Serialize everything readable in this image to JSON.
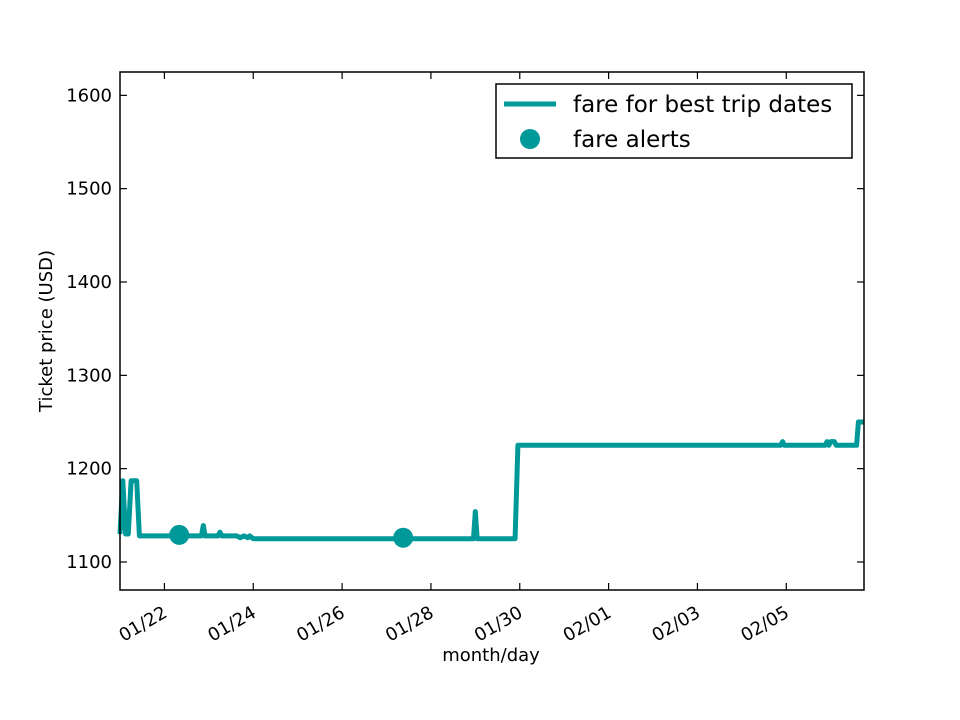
{
  "chart_data": {
    "type": "line",
    "xlabel": "month/day",
    "ylabel": "Ticket price (USD)",
    "xlim": [
      "2016-01-21",
      "2016-02-06 18:00"
    ],
    "ylim": [
      1070,
      1625
    ],
    "x_ticks": [
      {
        "date": "2016-01-22",
        "label": "01/22"
      },
      {
        "date": "2016-01-24",
        "label": "01/24"
      },
      {
        "date": "2016-01-26",
        "label": "01/26"
      },
      {
        "date": "2016-01-28",
        "label": "01/28"
      },
      {
        "date": "2016-01-30",
        "label": "01/30"
      },
      {
        "date": "2016-02-01",
        "label": "02/01"
      },
      {
        "date": "2016-02-03",
        "label": "02/03"
      },
      {
        "date": "2016-02-05",
        "label": "02/05"
      }
    ],
    "y_ticks": [
      1100,
      1200,
      1300,
      1400,
      1500,
      1600
    ],
    "grid": false,
    "legend_position": "top-right",
    "colors": {
      "series": "#009999",
      "axes": "#000000"
    },
    "series": [
      {
        "name": "fare for best trip dates",
        "style": "line",
        "points": [
          {
            "x": "2016-01-21 00:00",
            "y": 1130
          },
          {
            "x": "2016-01-21 01:30",
            "y": 1187
          },
          {
            "x": "2016-01-21 03:00",
            "y": 1130
          },
          {
            "x": "2016-01-21 04:30",
            "y": 1130
          },
          {
            "x": "2016-01-21 06:00",
            "y": 1187
          },
          {
            "x": "2016-01-21 09:00",
            "y": 1187
          },
          {
            "x": "2016-01-21 10:30",
            "y": 1128
          },
          {
            "x": "2016-01-22 20:00",
            "y": 1128
          },
          {
            "x": "2016-01-22 21:00",
            "y": 1139
          },
          {
            "x": "2016-01-22 22:00",
            "y": 1128
          },
          {
            "x": "2016-01-23 05:00",
            "y": 1128
          },
          {
            "x": "2016-01-23 06:00",
            "y": 1132
          },
          {
            "x": "2016-01-23 07:00",
            "y": 1128
          },
          {
            "x": "2016-01-23 15:00",
            "y": 1128
          },
          {
            "x": "2016-01-23 17:00",
            "y": 1126
          },
          {
            "x": "2016-01-23 19:00",
            "y": 1128
          },
          {
            "x": "2016-01-23 21:00",
            "y": 1126
          },
          {
            "x": "2016-01-23 22:00",
            "y": 1128
          },
          {
            "x": "2016-01-24 00:00",
            "y": 1125
          },
          {
            "x": "2016-01-28 23:00",
            "y": 1125
          },
          {
            "x": "2016-01-29 00:00",
            "y": 1154
          },
          {
            "x": "2016-01-29 01:00",
            "y": 1125
          },
          {
            "x": "2016-01-29 21:30",
            "y": 1125
          },
          {
            "x": "2016-01-29 23:00",
            "y": 1225
          },
          {
            "x": "2016-02-04 21:00",
            "y": 1225
          },
          {
            "x": "2016-02-04 22:00",
            "y": 1229
          },
          {
            "x": "2016-02-04 23:00",
            "y": 1225
          },
          {
            "x": "2016-02-05 21:00",
            "y": 1225
          },
          {
            "x": "2016-02-05 22:00",
            "y": 1229
          },
          {
            "x": "2016-02-05 23:00",
            "y": 1225
          },
          {
            "x": "2016-02-06 00:00",
            "y": 1229
          },
          {
            "x": "2016-02-06 02:00",
            "y": 1229
          },
          {
            "x": "2016-02-06 03:00",
            "y": 1225
          },
          {
            "x": "2016-02-06 14:00",
            "y": 1225
          },
          {
            "x": "2016-02-06 15:00",
            "y": 1250
          },
          {
            "x": "2016-02-06 18:00",
            "y": 1250
          }
        ]
      },
      {
        "name": "fare alerts",
        "style": "marker",
        "points": [
          {
            "x": "2016-01-22 08:00",
            "y": 1129
          },
          {
            "x": "2016-01-27 09:00",
            "y": 1126
          }
        ]
      }
    ]
  }
}
